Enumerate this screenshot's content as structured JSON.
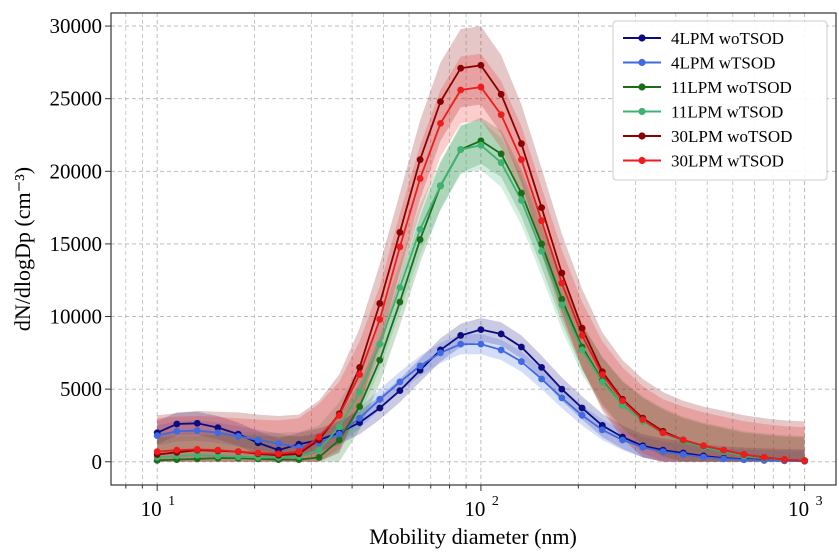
{
  "chart_data": {
    "type": "line",
    "xlabel": "Mobility diameter (nm)",
    "ylabel": "dN/dlogDp (cm⁻³)",
    "xscale": "log",
    "xlim": [
      7.2,
      1250
    ],
    "ylim": [
      -1600,
      30900
    ],
    "grid": true,
    "legend_position": "top-right",
    "x_ticks": [
      {
        "value": 10,
        "base": "10",
        "exp": "1"
      },
      {
        "value": 100,
        "base": "10",
        "exp": "2"
      },
      {
        "value": 1000,
        "base": "10",
        "exp": "3"
      }
    ],
    "y_ticks": [
      0,
      5000,
      10000,
      15000,
      20000,
      25000,
      30000
    ],
    "y_tick_labels": [
      "0",
      "5000",
      "10000",
      "15000",
      "20000",
      "25000",
      "30000"
    ],
    "x": [
      10,
      11.5,
      13.3,
      15.4,
      17.8,
      20.5,
      23.7,
      27.4,
      31.6,
      36.5,
      42.2,
      48.7,
      56.2,
      64.9,
      75.0,
      86.6,
      100,
      115.5,
      133.4,
      154.0,
      177.8,
      205.4,
      237.1,
      273.8,
      316.2,
      365.2,
      421.7,
      487.0,
      562.3,
      649.4,
      749.9,
      865.9,
      1000
    ],
    "series": [
      {
        "name": "4LPM woTSOD",
        "color": "#0c0c80",
        "band_width": 800,
        "y": [
          2000,
          2600,
          2650,
          2350,
          1900,
          1300,
          800,
          1200,
          1500,
          2000,
          2700,
          3700,
          4900,
          6300,
          7700,
          8700,
          9100,
          8800,
          7900,
          6500,
          5000,
          3700,
          2500,
          1700,
          1100,
          800,
          600,
          400,
          250,
          180,
          120,
          80,
          50
        ]
      },
      {
        "name": "4LPM wTSOD",
        "color": "#4169e1",
        "band_width": 700,
        "y": [
          1800,
          2100,
          2150,
          2000,
          1750,
          1500,
          1250,
          1000,
          1300,
          1900,
          3000,
          4300,
          5500,
          6600,
          7500,
          8100,
          8100,
          7700,
          6900,
          5700,
          4400,
          3200,
          2200,
          1500,
          1000,
          700,
          500,
          320,
          200,
          140,
          90,
          60,
          40
        ]
      },
      {
        "name": "11LPM woTSOD",
        "color": "#1a6e1a",
        "band_width": 1600,
        "y": [
          100,
          150,
          200,
          250,
          250,
          200,
          150,
          150,
          300,
          1500,
          3800,
          7000,
          11000,
          15300,
          19000,
          21500,
          22100,
          21200,
          18500,
          15000,
          11200,
          7900,
          5600,
          3900,
          2800,
          2000,
          1400,
          1000,
          700,
          400,
          250,
          130,
          80
        ]
      },
      {
        "name": "11LPM wTSOD",
        "color": "#3cb371",
        "band_width": 1700,
        "y": [
          300,
          400,
          450,
          400,
          350,
          300,
          300,
          350,
          800,
          2400,
          4800,
          8100,
          12000,
          16000,
          19000,
          21500,
          21800,
          20600,
          18000,
          14500,
          10800,
          7700,
          5500,
          3900,
          2800,
          2000,
          1400,
          1000,
          700,
          400,
          250,
          130,
          80
        ]
      },
      {
        "name": "30LPM woTSOD",
        "color": "#8b0000",
        "band_width": 2700,
        "y": [
          500,
          650,
          800,
          750,
          700,
          550,
          450,
          550,
          1500,
          3300,
          6500,
          10900,
          15800,
          20800,
          24800,
          27100,
          27300,
          25300,
          21900,
          17500,
          13000,
          9200,
          6200,
          4300,
          3000,
          2100,
          1500,
          1100,
          800,
          500,
          300,
          150,
          80
        ]
      },
      {
        "name": "30LPM wTSOD",
        "color": "#ee1c1c",
        "band_width": 2300,
        "y": [
          700,
          800,
          850,
          800,
          700,
          600,
          550,
          700,
          1700,
          3200,
          6000,
          9800,
          14800,
          19500,
          23300,
          25600,
          25800,
          23900,
          20800,
          16600,
          12300,
          8700,
          6000,
          4200,
          2900,
          2000,
          1500,
          1100,
          800,
          500,
          300,
          150,
          80
        ]
      }
    ]
  }
}
